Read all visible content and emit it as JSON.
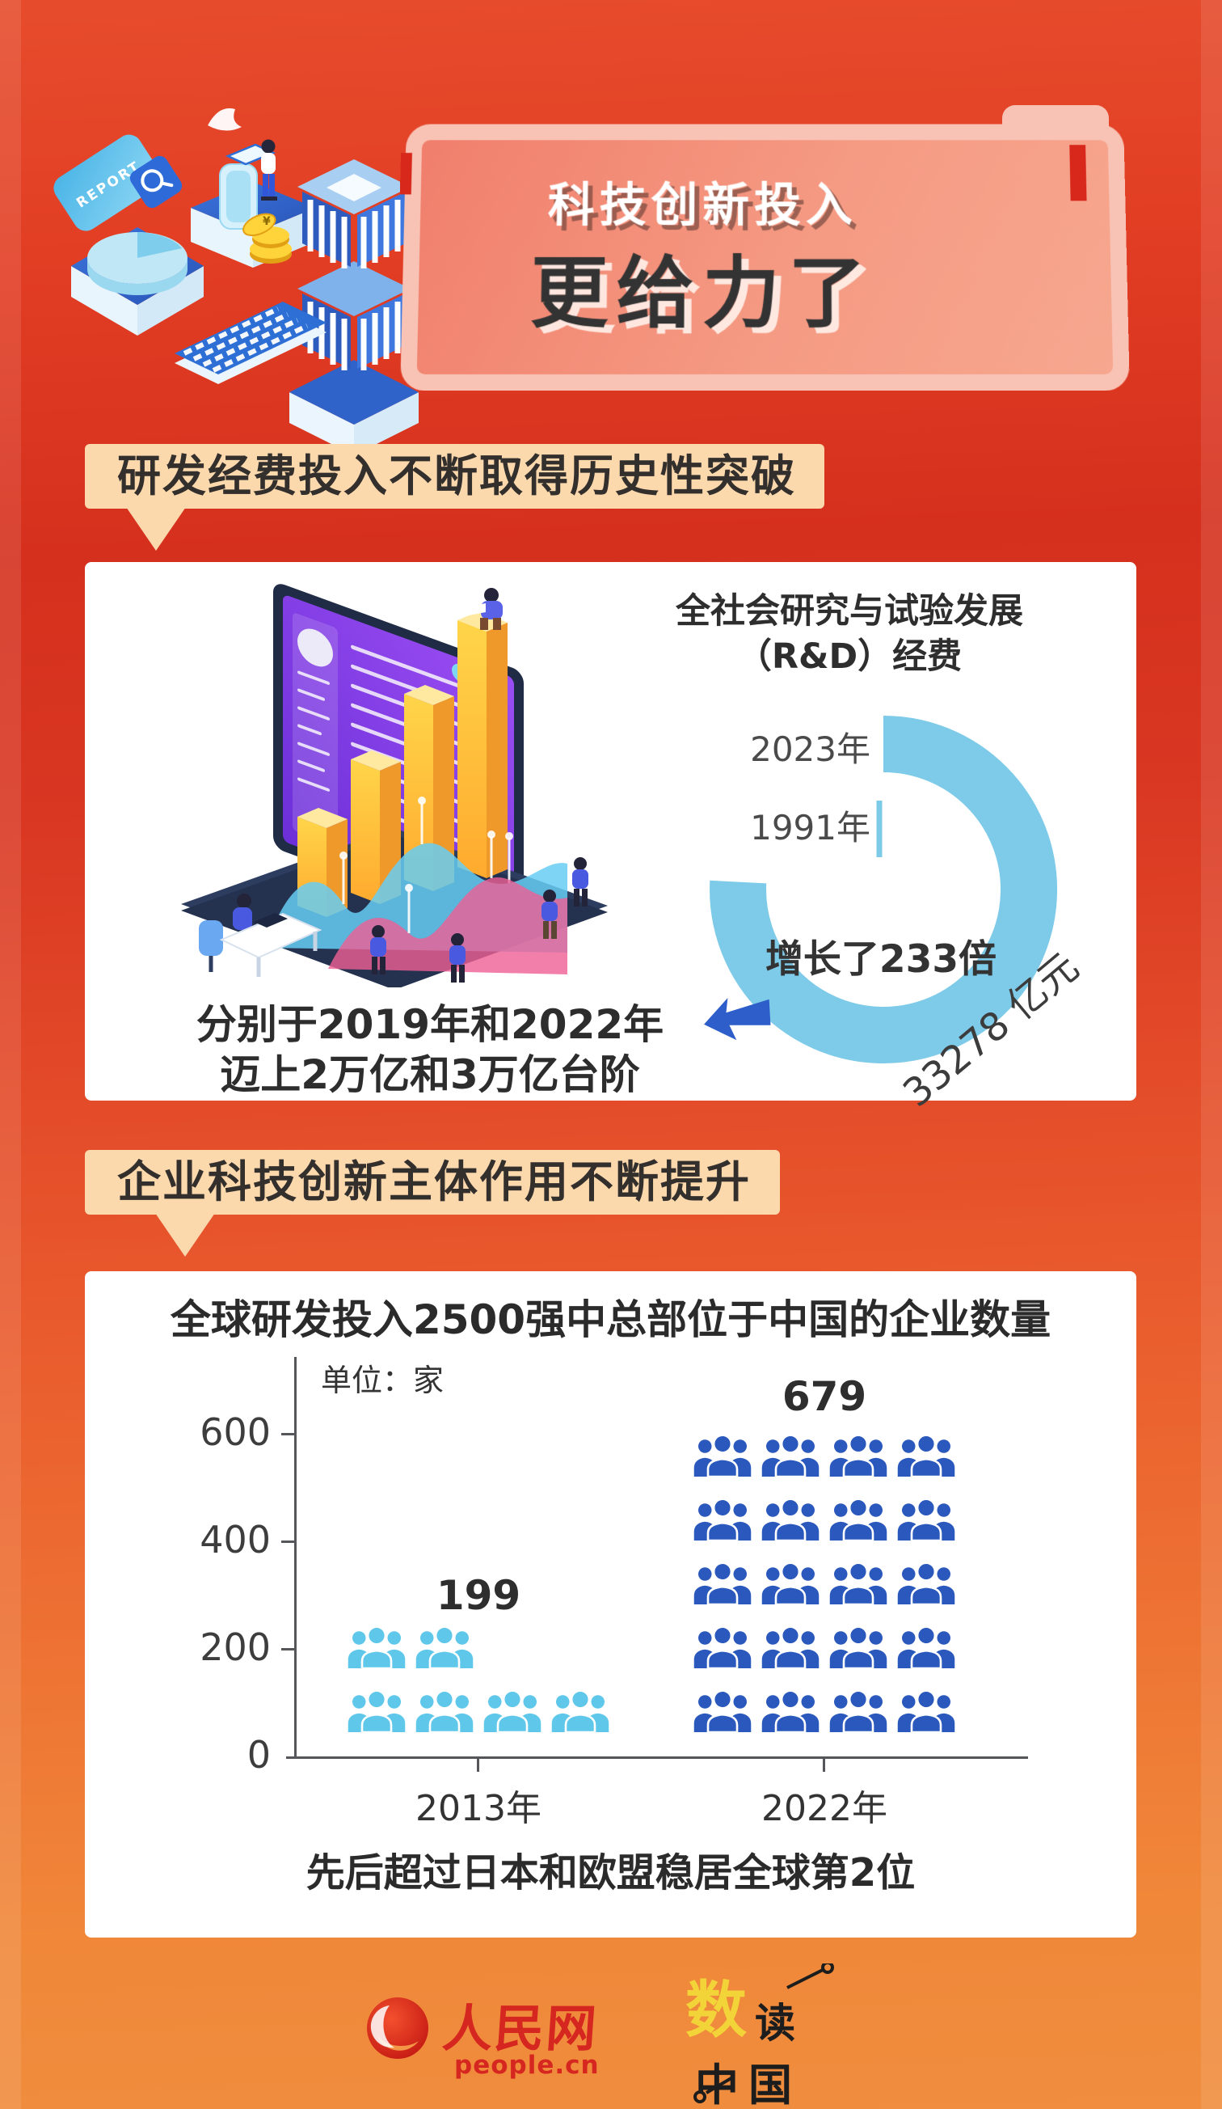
{
  "header": {
    "title_line1": "科技创新投入",
    "title_line2": "更给力了",
    "illustration": {
      "report_label": "REPORT",
      "coin_symbol": "¥"
    }
  },
  "section1": {
    "banner": "研发经费投入不断取得历史性突破",
    "chart_title_line1": "全社会研究与试验发展",
    "chart_title_line2": "（R&D）经费",
    "caption_line1": "分别于2019年和2022年",
    "caption_line2": "迈上2万亿和3万亿台阶",
    "accent_blue": "#2e5ec9"
  },
  "section2": {
    "banner": "企业科技创新主体作用不断提升",
    "unit_label": "单位：家"
  },
  "footer": {
    "people_logo_text": "人民网",
    "people_logo_sub": "people.cn",
    "shudu_char1": "数",
    "shudu_char2": "读",
    "shudu_char3": "中国"
  },
  "chart_data": [
    {
      "type": "radial-bar",
      "title": "全社会研究与试验发展（R&D）经费",
      "rings": [
        {
          "label": "2023年",
          "value": 33278,
          "value_label": "33278 亿元"
        },
        {
          "label": "1991年"
        }
      ],
      "annotation": "增长了233倍",
      "color": "#7ecbe9",
      "legend_position": "left",
      "grid": false
    },
    {
      "type": "pictograph-bar",
      "title": "全球研发投入2500强中总部位于中国的企业数量",
      "unit": "家",
      "categories": [
        "2013年",
        "2022年"
      ],
      "values": [
        199,
        679
      ],
      "colors": [
        "#5ec7ea",
        "#2a58bc"
      ],
      "icon": "people-group",
      "icon_rows": [
        [
          2,
          4
        ],
        [
          4,
          4,
          4,
          4,
          4
        ]
      ],
      "yticks": [
        0,
        200,
        400,
        600
      ],
      "yticks_display": [
        "600",
        "400",
        "200",
        "0"
      ],
      "ylim": [
        0,
        700
      ],
      "xlabel": "",
      "ylabel": "家",
      "grid": false,
      "footnote": "先后超过日本和欧盟稳居全球第2位"
    }
  ]
}
